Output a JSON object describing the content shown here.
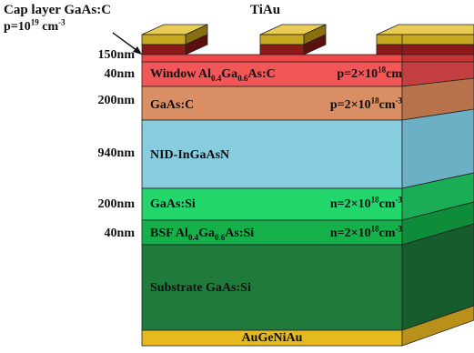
{
  "cap_layer": {
    "line1": "Cap layer GaAs:C",
    "line2": "p=10",
    "line2_exp": "19",
    "line2_unit": " cm",
    "line2_unit_exp": "-3"
  },
  "top_contact_label": "TiAu",
  "bottom_contact_label": "AuGeNiAu",
  "layers": [
    {
      "id": "cap",
      "thickness": "150nm",
      "color": "#f04848"
    },
    {
      "id": "window",
      "thickness": "40nm",
      "name": "Window Al",
      "name_sub1": "0.4",
      "name_mid": "Ga",
      "name_sub2": "0.6",
      "name_end": "As:C",
      "conc": "p=2×10",
      "conc_exp": "18",
      "conc_unit": "cm",
      "color": "#f25656"
    },
    {
      "id": "gaas-c",
      "thickness": "200nm",
      "name": "GaAs:C",
      "conc": "p=2×10",
      "conc_exp": "18",
      "conc_unit": "cm",
      "conc_unit_exp": "-3",
      "color": "#d98e63"
    },
    {
      "id": "nid",
      "thickness": "940nm",
      "name": "NID-InGaAsN",
      "color": "#87ccdf"
    },
    {
      "id": "gaas-si",
      "thickness": "200nm",
      "name": "GaAs:Si",
      "conc": "n=2×10",
      "conc_exp": "18",
      "conc_unit": "cm",
      "conc_unit_exp": "-3",
      "color": "#23d66b"
    },
    {
      "id": "bsf",
      "thickness": "40nm",
      "name": "BSF Al",
      "name_sub1": "0.4",
      "name_mid": "Ga",
      "name_sub2": "0.6",
      "name_end": "As:Si",
      "conc": "n=2×10",
      "conc_exp": "18",
      "conc_unit": "cm",
      "conc_unit_exp": "-3",
      "color": "#14b049"
    },
    {
      "id": "substrate",
      "name": "Substrate GaAs:Si",
      "color": "#1f7a3b"
    }
  ],
  "colors": {
    "tiau": "#c8a81e",
    "cap_bar": "#8b1a1a",
    "augeniau": "#e6b91e",
    "outline": "#222222"
  }
}
